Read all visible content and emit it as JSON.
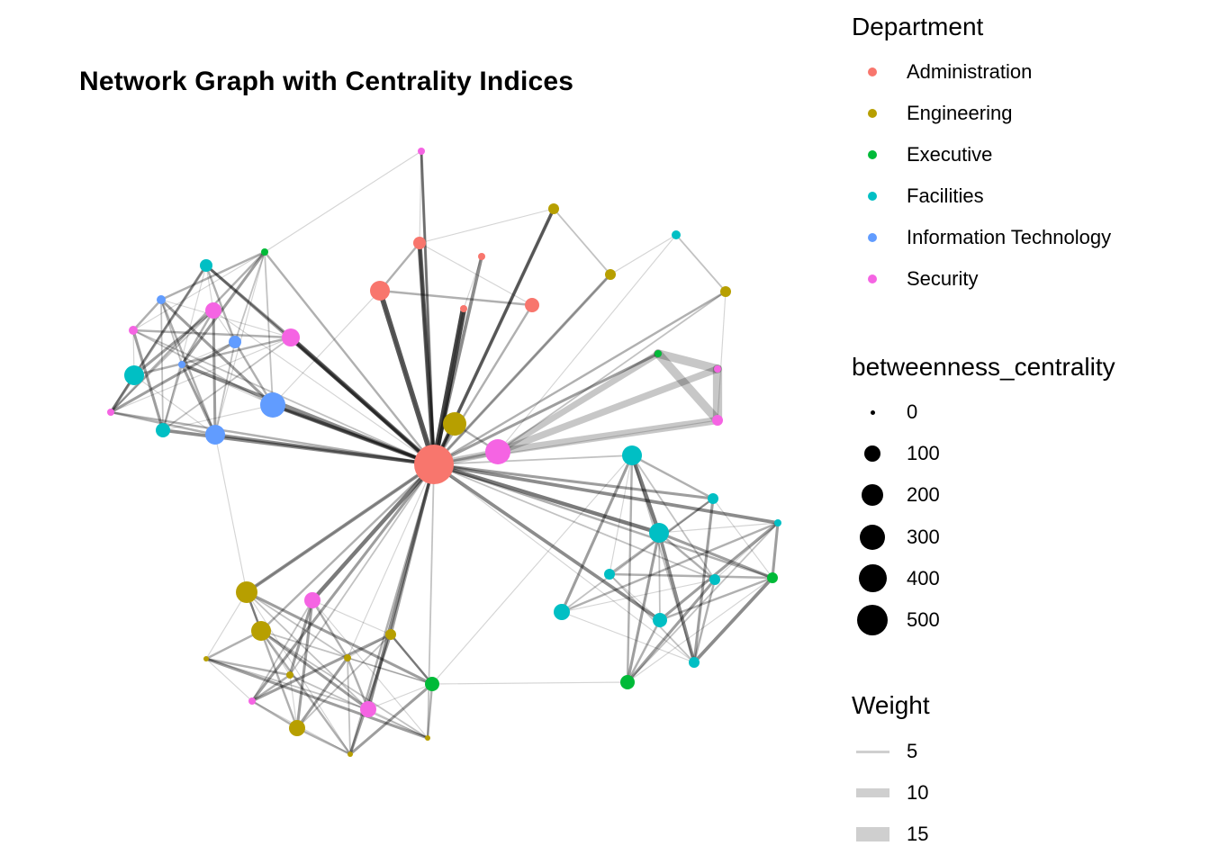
{
  "title": "Network Graph with Centrality Indices",
  "colors": {
    "Administration": "#F8766D",
    "Engineering": "#B79F00",
    "Executive": "#00BA38",
    "Facilities": "#00BFC4",
    "Information Technology": "#619CFF",
    "Security": "#F564E3"
  },
  "legends": {
    "department": {
      "title": "Department",
      "items": [
        "Administration",
        "Engineering",
        "Executive",
        "Facilities",
        "Information Technology",
        "Security"
      ]
    },
    "betweenness": {
      "title": "betweenness_centrality",
      "items": [
        "0",
        "100",
        "200",
        "300",
        "400",
        "500"
      ]
    },
    "weight": {
      "title": "Weight",
      "items": [
        "5",
        "10",
        "15"
      ]
    }
  }
}
